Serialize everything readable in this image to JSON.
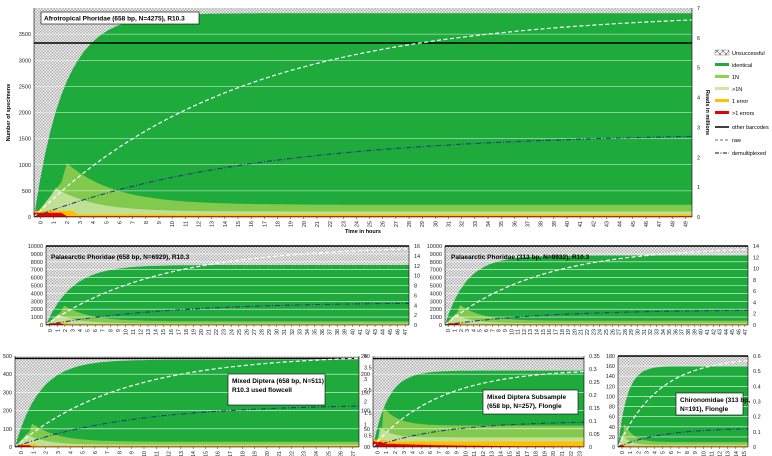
{
  "colors": {
    "unsuccessful": "#d9d9d9",
    "identical": "#1faa3c",
    "one_n": "#93d050",
    "gt_one_n": "#cfe6a8",
    "one_error": "#ffc000",
    "gt_one_errors": "#e60000",
    "other_barcodes": "#000000",
    "raw": "#ffffff",
    "demultiplexed": "#1f3f7f"
  },
  "legend": {
    "unsuccessful": "Unsuccessful",
    "identical": "identical",
    "one_n": "1N",
    "gt_one_n": ">1N",
    "one_error": "1 error",
    "gt_one_errors": ">1 errors",
    "other_barcodes": "other barcodes",
    "raw": "raw",
    "demultiplexed": "demultiplexed"
  },
  "chart_data": [
    {
      "id": "afro",
      "type": "area",
      "title": "Afrotropical Phoridae  (658 bp, N=4275), R10.3",
      "xlabel": "Time in hours",
      "ylabel": "Number of specimens",
      "y2label": "Reads in millions",
      "x_ticks": [
        "0",
        "1",
        "2",
        "3",
        "4",
        "5",
        "6",
        "7",
        "8",
        "9",
        "10",
        "11",
        "12",
        "13",
        "14",
        "15",
        "16",
        "17",
        "18",
        "19",
        "20",
        "21",
        "22",
        "23",
        "24",
        "25",
        "26",
        "27",
        "28",
        "29",
        "30",
        "31",
        "32",
        "33",
        "34",
        "35",
        "36",
        "37",
        "38",
        "39",
        "40",
        "41",
        "42",
        "43",
        "44",
        "45",
        "46",
        "47",
        "48",
        "49"
      ],
      "ylim": [
        0,
        4000
      ],
      "y_ticks": [
        "0",
        "500",
        "1000",
        "1500",
        "2000",
        "2500",
        "3000",
        "3500"
      ],
      "y2lim": [
        0,
        7
      ],
      "y2_ticks": [
        "0",
        "1",
        "2",
        "3",
        "4",
        "5",
        "6",
        "7"
      ],
      "n_total": 4275,
      "other_barcodes": 3330,
      "identical_plateau": 3900,
      "raw_final_millions": 6.6,
      "demux_final_millions": 2.7
    },
    {
      "id": "pal658",
      "type": "area",
      "title": "Palaearctic Phoridae (658 bp, N=6929), R10.3",
      "x_ticks": [
        "0",
        "1",
        "2",
        "3",
        "4",
        "5",
        "6",
        "7",
        "8",
        "9",
        "10",
        "11",
        "12",
        "13",
        "14",
        "15",
        "16",
        "17",
        "18",
        "19",
        "20",
        "21",
        "22",
        "23",
        "24",
        "25",
        "26",
        "27",
        "28",
        "29",
        "30",
        "31",
        "32",
        "33",
        "34",
        "35",
        "36",
        "37",
        "38",
        "39",
        "40",
        "41",
        "42",
        "43",
        "44",
        "45",
        "46",
        "47"
      ],
      "ylim": [
        0,
        10000
      ],
      "y_ticks": [
        "0",
        "1000",
        "2000",
        "3000",
        "4000",
        "5000",
        "6000",
        "7000",
        "8000",
        "9000",
        "10000"
      ],
      "y2lim": [
        0,
        16
      ],
      "y2_ticks": [
        "0",
        "2",
        "4",
        "6",
        "8",
        "10",
        "12",
        "14",
        "16"
      ],
      "n_total": 6929,
      "other_barcodes": 10000,
      "identical_plateau": 7600,
      "raw_final_millions": 15.4,
      "demux_final_millions": 4.4
    },
    {
      "id": "pal313",
      "type": "area",
      "title": "Palaearctic Phoridae (313 bp, N=9932), R10.3",
      "x_ticks": [
        "0",
        "1",
        "2",
        "3",
        "4",
        "5",
        "6",
        "7",
        "8",
        "9",
        "10",
        "11",
        "12",
        "13",
        "14",
        "15",
        "16",
        "17",
        "18",
        "19",
        "20",
        "21",
        "22",
        "23",
        "24",
        "25",
        "26",
        "27",
        "28",
        "29",
        "30",
        "31",
        "32",
        "33",
        "34",
        "35",
        "36",
        "37",
        "38",
        "39",
        "40",
        "41",
        "42",
        "43",
        "44",
        "45",
        "46",
        "47"
      ],
      "ylim": [
        0,
        10000
      ],
      "y_ticks": [
        "0",
        "1000",
        "2000",
        "3000",
        "4000",
        "5000",
        "6000",
        "7000",
        "8000",
        "9000",
        "10000"
      ],
      "y2lim": [
        0,
        14
      ],
      "y2_ticks": [
        "0",
        "2",
        "4",
        "6",
        "8",
        "10",
        "12",
        "14"
      ],
      "n_total": 9932,
      "other_barcodes": 10000,
      "identical_plateau": 8800,
      "raw_final_millions": 13.4,
      "demux_final_millions": 2.6
    },
    {
      "id": "mixed",
      "type": "area",
      "title": "Mixed Diptera (658 bp, N=511)",
      "title2": "R10.3 used flowcell",
      "x_ticks": [
        "0",
        "1",
        "2",
        "3",
        "4",
        "5",
        "6",
        "7",
        "8",
        "9",
        "10",
        "11",
        "12",
        "13",
        "14",
        "15",
        "16",
        "17",
        "18",
        "19",
        "20",
        "21",
        "22",
        "23",
        "24",
        "25",
        "26",
        "27"
      ],
      "ylim": [
        0,
        500
      ],
      "y_ticks": [
        "0",
        "100",
        "200",
        "300",
        "400",
        "500"
      ],
      "y2lim": [
        0,
        4
      ],
      "y2_ticks": [
        "0",
        "0.5",
        "1",
        "1.5",
        "2",
        "2.5",
        "3",
        "3.5",
        "4"
      ],
      "n_total": 511,
      "other_barcodes": 487,
      "identical_plateau": 480,
      "raw_final_millions": 3.9,
      "demux_final_millions": 1.8
    },
    {
      "id": "subsample",
      "type": "area",
      "title": "Mixed Diptera Subsample",
      "title2": "(658 bp, N=257), Flongle",
      "x_ticks": [
        "0",
        "1",
        "2",
        "3",
        "4",
        "5",
        "6",
        "7",
        "8",
        "9",
        "10",
        "11",
        "12",
        "13",
        "14",
        "15",
        "16",
        "17",
        "18",
        "19",
        "20",
        "21",
        "22",
        "23"
      ],
      "ylim": [
        0,
        250
      ],
      "y_ticks": [
        "0",
        "50",
        "100",
        "150",
        "200",
        "250"
      ],
      "y2lim": [
        0,
        0.35
      ],
      "y2_ticks": [
        "0",
        "0.05",
        "0.1",
        "0.15",
        "0.2",
        "0.25",
        "0.3",
        "0.35"
      ],
      "n_total": 257,
      "other_barcodes": 243,
      "identical_plateau": 210,
      "raw_final_millions": 0.29,
      "demux_final_millions": 0.095
    },
    {
      "id": "chiro",
      "type": "area",
      "title": "Chironomidae (313 bp,",
      "title2": "N=191), Flongle",
      "x_ticks": [
        "0",
        "1",
        "2",
        "3",
        "4",
        "5",
        "6",
        "7",
        "8",
        "9",
        "10",
        "11",
        "12",
        "13",
        "14",
        "15"
      ],
      "ylim": [
        0,
        180
      ],
      "y_ticks": [
        "0",
        "20",
        "40",
        "60",
        "80",
        "100",
        "120",
        "140",
        "160",
        "180"
      ],
      "y2lim": [
        0,
        0.6
      ],
      "y2_ticks": [
        "0",
        "0.1",
        "0.2",
        "0.3",
        "0.4",
        "0.5",
        "0.6"
      ],
      "n_total": 191,
      "other_barcodes": 180,
      "identical_plateau": 160,
      "raw_final_millions": 0.57,
      "demux_final_millions": 0.12
    }
  ]
}
